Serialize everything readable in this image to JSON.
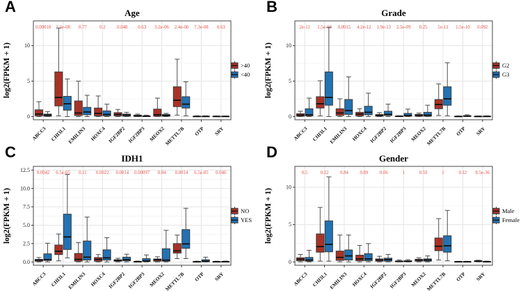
{
  "style": {
    "red_fill": "#A93226",
    "blue_fill": "#2272B4",
    "box_stroke": "#3a3a3a",
    "whisker": "#4d4d4d",
    "median": "#111111",
    "grid_major": "#e4e4e4",
    "grid_minor": "#f1f1f1",
    "pvalue_color": "#e8524a",
    "axis_color": "#333333",
    "panel_border": "#444444"
  },
  "chart_data": [
    {
      "type": "boxplot",
      "panel_letter": "A",
      "title": "Age",
      "ylabel": "log2(FPKM + 1)",
      "categories": [
        "ABCC3",
        "CHI3L1",
        "EMILIN3",
        "HOXC4",
        "IGF2BP2",
        "IGF2BP3",
        "MEOX2",
        "METTL7B",
        "OTP",
        "SRY"
      ],
      "p_values": [
        "0.00018",
        "7.3e-08",
        "0.77",
        "0.2",
        "0.048",
        "0.63",
        "3.2e-06",
        "2.4e-06",
        "7.3e-08",
        "0.63"
      ],
      "yticks": [
        0,
        5,
        10
      ],
      "ytick_labels": [
        "0",
        "5",
        "10"
      ],
      "yticks_minor": [
        2.5,
        7.5,
        12.5
      ],
      "ylim": [
        -0.45,
        13.5
      ],
      "legend": [
        {
          "label": ">40",
          "color": "#A93226"
        },
        {
          "label": "<40",
          "color": "#2272B4"
        }
      ],
      "series": [
        {
          "name": ">40",
          "color": "#A93226",
          "boxes": [
            [
              0,
              0.1,
              0.35,
              0.95,
              2.1
            ],
            [
              0.1,
              1.5,
              2.7,
              6.3,
              12.5
            ],
            [
              0,
              0.15,
              0.5,
              2.2,
              5.0
            ],
            [
              0,
              0.1,
              0.45,
              1.2,
              2.9
            ],
            [
              0,
              0.1,
              0.3,
              0.55,
              1.0
            ],
            [
              0,
              0.02,
              0.1,
              0.2,
              0.35
            ],
            [
              0,
              0.05,
              0.25,
              1.05,
              2.6
            ],
            [
              0.2,
              1.4,
              2.3,
              4.2,
              8.1
            ],
            [
              0,
              0,
              0.02,
              0.05,
              0.1
            ],
            [
              0,
              0,
              0.02,
              0.05,
              0.08
            ]
          ]
        },
        {
          "name": "<40",
          "color": "#2272B4",
          "boxes": [
            [
              0,
              0.05,
              0.2,
              0.35,
              0.7
            ],
            [
              0,
              0.9,
              1.8,
              2.85,
              5.3
            ],
            [
              0,
              0.25,
              0.65,
              1.3,
              3.0
            ],
            [
              0,
              0.1,
              0.3,
              0.8,
              1.75
            ],
            [
              0,
              0.05,
              0.2,
              0.35,
              0.6
            ],
            [
              0,
              0.01,
              0.05,
              0.1,
              0.2
            ],
            [
              0,
              0.05,
              0.15,
              0.3,
              0.45
            ],
            [
              0.1,
              1.2,
              1.75,
              2.8,
              4.9
            ],
            [
              0,
              0,
              0.02,
              0.05,
              0.1
            ],
            [
              0,
              0,
              0.02,
              0.05,
              0.08
            ]
          ]
        }
      ]
    },
    {
      "type": "boxplot",
      "panel_letter": "B",
      "title": "Grade",
      "ylabel": "log2(FPKM + 1)",
      "categories": [
        "ABCC3",
        "CHI3L1",
        "EMILIN3",
        "HOXC4",
        "IGF2BP2",
        "IGF2BP3",
        "MEOX2",
        "METTL7B",
        "OTP",
        "SRY"
      ],
      "p_values": [
        "2e-11",
        "1.5e-10",
        "0.0015",
        "4.2e-12",
        "1.9e-13",
        "2.5e-09",
        "0.25",
        "1e-12",
        "1.5e-10",
        "0.092"
      ],
      "yticks": [
        0,
        5,
        10
      ],
      "ytick_labels": [
        "0",
        "5",
        "10"
      ],
      "yticks_minor": [
        2.5,
        7.5,
        12.5
      ],
      "ylim": [
        -0.45,
        13.5
      ],
      "legend": [
        {
          "label": "G2",
          "color": "#A93226"
        },
        {
          "label": "G3",
          "color": "#2272B4"
        }
      ],
      "series": [
        {
          "name": "G2",
          "color": "#A93226",
          "boxes": [
            [
              0,
              0.05,
              0.2,
              0.4,
              0.75
            ],
            [
              0.1,
              1.2,
              1.8,
              2.8,
              5.05
            ],
            [
              0,
              0.15,
              0.5,
              1.1,
              2.5
            ],
            [
              0,
              0.1,
              0.35,
              0.6,
              1.1
            ],
            [
              0,
              0.05,
              0.15,
              0.3,
              0.55
            ],
            [
              0,
              0.01,
              0.03,
              0.07,
              0.12
            ],
            [
              0,
              0.05,
              0.2,
              0.3,
              0.5
            ],
            [
              0.15,
              1.1,
              1.7,
              2.4,
              4.6
            ],
            [
              0,
              0,
              0.02,
              0.04,
              0.08
            ],
            [
              0,
              0,
              0.02,
              0.04,
              0.08
            ]
          ]
        },
        {
          "name": "G3",
          "color": "#2272B4",
          "boxes": [
            [
              0,
              0.1,
              0.25,
              1.1,
              2.6
            ],
            [
              0,
              1.6,
              2.7,
              6.3,
              12.6
            ],
            [
              0,
              0.3,
              0.85,
              2.4,
              5.6
            ],
            [
              0,
              0.25,
              0.6,
              1.45,
              3.3
            ],
            [
              0,
              0.15,
              0.3,
              0.75,
              1.75
            ],
            [
              0,
              0.05,
              0.15,
              0.45,
              1.05
            ],
            [
              0,
              0.05,
              0.2,
              0.6,
              1.6
            ],
            [
              0.1,
              1.6,
              2.5,
              4.2,
              7.6
            ],
            [
              0,
              0.02,
              0.06,
              0.12,
              0.25
            ],
            [
              0,
              0,
              0.02,
              0.05,
              0.1
            ]
          ]
        }
      ]
    },
    {
      "type": "boxplot",
      "panel_letter": "C",
      "title": "IDH1",
      "ylabel": "log2(FPKM + 1)",
      "categories": [
        "ABCC3",
        "CHI3L1",
        "EMILIN3",
        "HOXC4",
        "IGF2BP2",
        "IGF2BP3",
        "MEOX2",
        "METTL7B",
        "OTP",
        "SRY"
      ],
      "p_values": [
        "0.0042",
        "6.5e-05",
        "0.11",
        "0.0022",
        "0.0014",
        "0.00097",
        "0.84",
        "0.0014",
        "6.5e-05",
        "0.046"
      ],
      "yticks": [
        0,
        2.5,
        5,
        7.5,
        10,
        12.5
      ],
      "ytick_labels": [
        "0.0",
        "2.5",
        "5.0",
        "7.5",
        "10.0",
        "12.5"
      ],
      "yticks_minor": [
        1.25,
        3.75,
        6.25,
        8.75,
        11.25
      ],
      "ylim": [
        -0.45,
        13.0
      ],
      "legend": [
        {
          "label": "NO",
          "color": "#A93226"
        },
        {
          "label": "YES",
          "color": "#2272B4"
        }
      ],
      "series": [
        {
          "name": "NO",
          "color": "#A93226",
          "boxes": [
            [
              0,
              0.1,
              0.25,
              0.35,
              0.6
            ],
            [
              0.15,
              1.0,
              1.45,
              2.3,
              3.8
            ],
            [
              0,
              0.1,
              0.35,
              1.15,
              2.65
            ],
            [
              0,
              0.1,
              0.35,
              0.6,
              1.0
            ],
            [
              0,
              0.1,
              0.2,
              0.3,
              0.5
            ],
            [
              0,
              0.01,
              0.03,
              0.06,
              0.12
            ],
            [
              0,
              0.1,
              0.3,
              0.4,
              0.7
            ],
            [
              0.45,
              1.2,
              1.5,
              2.5,
              3.65
            ],
            [
              0,
              0,
              0.02,
              0.05,
              0.1
            ],
            [
              0,
              0,
              0.02,
              0.05,
              0.1
            ]
          ]
        },
        {
          "name": "YES",
          "color": "#2272B4",
          "boxes": [
            [
              0,
              0.2,
              0.3,
              1.1,
              2.55
            ],
            [
              0.55,
              1.7,
              3.4,
              6.5,
              11.9
            ],
            [
              0,
              0.25,
              0.65,
              2.85,
              6.1
            ],
            [
              0,
              0.25,
              0.55,
              1.65,
              3.3
            ],
            [
              0,
              0.15,
              0.3,
              0.65,
              1.05
            ],
            [
              0,
              0.05,
              0.15,
              0.45,
              0.95
            ],
            [
              0,
              0.1,
              0.25,
              1.8,
              4.3
            ],
            [
              0.45,
              1.85,
              2.45,
              4.4,
              7.3
            ],
            [
              0,
              0.02,
              0.1,
              0.3,
              0.65
            ],
            [
              0,
              0,
              0.02,
              0.06,
              0.12
            ]
          ]
        }
      ]
    },
    {
      "type": "boxplot",
      "panel_letter": "D",
      "title": "Gender",
      "ylabel": "log2(FPKM + 1)",
      "categories": [
        "ABCC3",
        "CHI3L1",
        "EMILIN3",
        "HOXC4",
        "IGF2BP2",
        "IGF2BP3",
        "MEOX2",
        "METTL7B",
        "OTP",
        "SRY"
      ],
      "p_values": [
        "0.5",
        "0.12",
        "0.84",
        "0.89",
        "0.06",
        "1",
        "0.59",
        "1",
        "0.12",
        "8.5e-36"
      ],
      "yticks": [
        0,
        5,
        10
      ],
      "ytick_labels": [
        "0",
        "5",
        "10"
      ],
      "yticks_minor": [
        2.5,
        7.5,
        12.5
      ],
      "ylim": [
        -0.45,
        12.8
      ],
      "legend": [
        {
          "label": "Male",
          "color": "#A93226"
        },
        {
          "label": "Female",
          "color": "#2272B4"
        }
      ],
      "series": [
        {
          "name": "Male",
          "color": "#A93226",
          "boxes": [
            [
              0,
              0.15,
              0.35,
              0.55,
              1.0
            ],
            [
              0.1,
              1.3,
              2.05,
              3.75,
              7.3
            ],
            [
              0,
              0.2,
              0.6,
              1.45,
              3.6
            ],
            [
              0,
              0.15,
              0.4,
              0.9,
              2.2
            ],
            [
              0,
              0.1,
              0.25,
              0.4,
              0.75
            ],
            [
              0,
              0.02,
              0.06,
              0.12,
              0.25
            ],
            [
              0,
              0.1,
              0.25,
              0.35,
              0.55
            ],
            [
              0.25,
              1.5,
              2.1,
              3.2,
              5.8
            ],
            [
              0,
              0,
              0.02,
              0.04,
              0.08
            ],
            [
              0,
              0.04,
              0.1,
              0.16,
              0.22
            ]
          ]
        },
        {
          "name": "Female",
          "color": "#2272B4",
          "boxes": [
            [
              0,
              0.1,
              0.25,
              0.6,
              1.55
            ],
            [
              0.1,
              1.35,
              2.35,
              5.5,
              11.4
            ],
            [
              0,
              0.25,
              0.8,
              1.6,
              3.6
            ],
            [
              0,
              0.15,
              0.4,
              1.1,
              2.45
            ],
            [
              0,
              0.1,
              0.3,
              0.5,
              1.0
            ],
            [
              0,
              0.03,
              0.08,
              0.15,
              0.3
            ],
            [
              0,
              0.1,
              0.25,
              0.4,
              0.8
            ],
            [
              0.15,
              1.3,
              2.15,
              3.5,
              6.9
            ],
            [
              0,
              0,
              0.02,
              0.04,
              0.08
            ],
            [
              0,
              0,
              0.02,
              0.05,
              0.1
            ]
          ]
        }
      ]
    }
  ]
}
